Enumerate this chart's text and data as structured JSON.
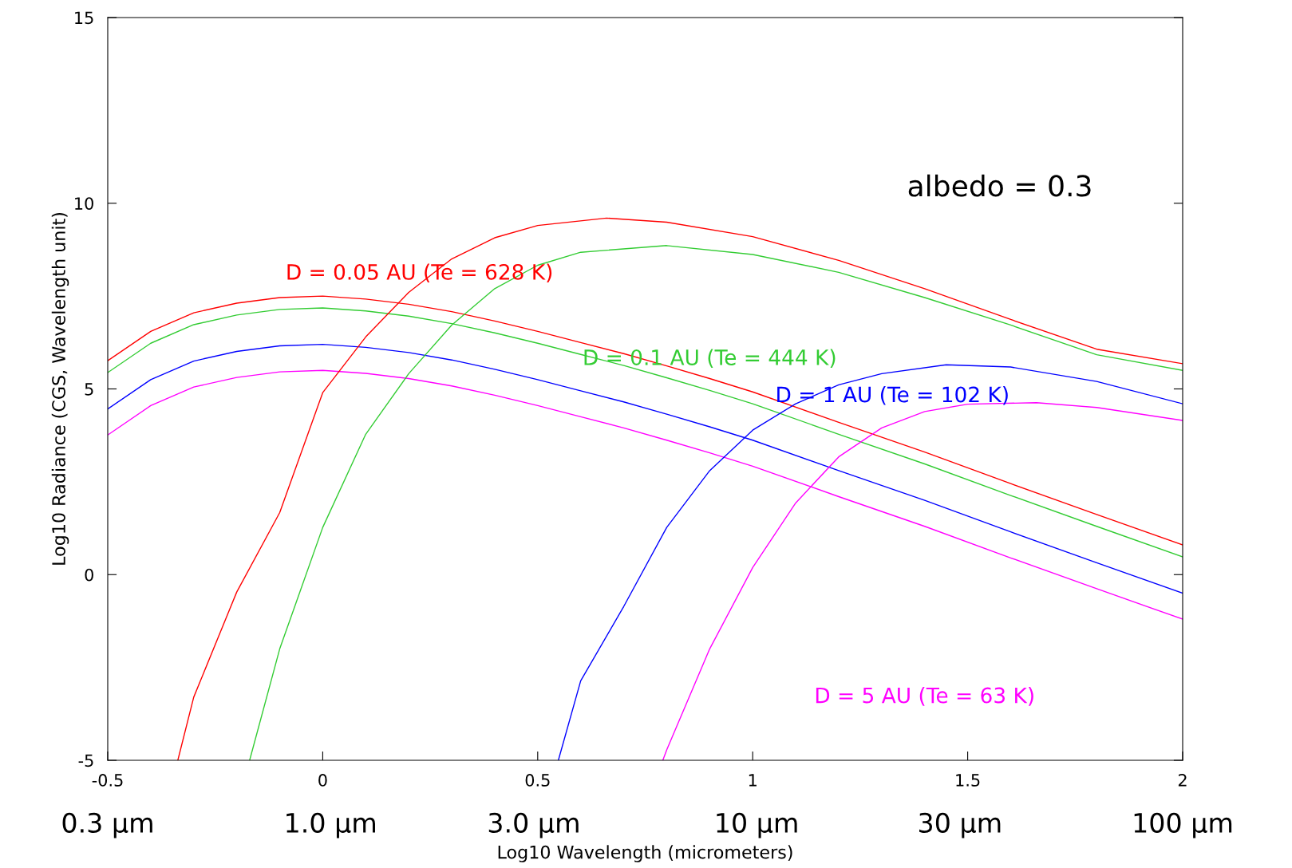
{
  "chart_data": {
    "type": "line",
    "xlabel": "Log10 Wavelength (micrometers)",
    "ylabel": "Log10 Radiance (CGS, Wavelength unit)",
    "xlim": [
      -0.5,
      2
    ],
    "xticks": [
      -0.5,
      0,
      0.5,
      1,
      1.5,
      2
    ],
    "ylim": [
      -5,
      15
    ],
    "yticks": [
      -5,
      0,
      5,
      10,
      15
    ],
    "x2lim": [
      0.3,
      100
    ],
    "log": "x2",
    "x2ticks": [
      {
        "value": 0.3,
        "label": "0.3 μm"
      },
      {
        "value": 1,
        "label": "1.0 μm"
      },
      {
        "value": 3,
        "label": "3.0 μm"
      },
      {
        "value": 10,
        "label": "10 μm"
      },
      {
        "value": 30,
        "label": "30 μm"
      },
      {
        "value": 100,
        "label": "100 μm"
      }
    ],
    "grid": false,
    "legend": false,
    "marker": "none",
    "line_style": "solid",
    "annotations": [
      "albedo = 0.3"
    ],
    "series": [
      {
        "color": "#ff0000",
        "x": [
          -0.5,
          -0.4,
          -0.3,
          -0.2,
          -0.1,
          0,
          0.1,
          0.2,
          0.3,
          0.4,
          0.5,
          0.6,
          0.7,
          0.8,
          0.9,
          1.0,
          1.2,
          1.4,
          1.6,
          1.8,
          2.0
        ],
        "values": [
          5.76,
          6.55,
          7.05,
          7.31,
          7.46,
          7.5,
          7.42,
          7.28,
          7.08,
          6.83,
          6.55,
          6.25,
          5.95,
          5.62,
          5.28,
          4.92,
          4.1,
          3.3,
          2.45,
          1.62,
          0.8
        ]
      },
      {
        "color": "#33cc33",
        "x": [
          -0.5,
          -0.4,
          -0.3,
          -0.2,
          -0.1,
          0,
          0.1,
          0.2,
          0.3,
          0.4,
          0.5,
          0.6,
          0.7,
          0.8,
          0.9,
          1.0,
          1.2,
          1.4,
          1.6,
          1.8,
          2.0
        ],
        "values": [
          5.44,
          6.23,
          6.73,
          6.99,
          7.14,
          7.18,
          7.1,
          6.96,
          6.76,
          6.51,
          6.23,
          5.93,
          5.63,
          5.3,
          4.96,
          4.6,
          3.78,
          2.98,
          2.13,
          1.3,
          0.48
        ]
      },
      {
        "color": "#0000ff",
        "x": [
          -0.5,
          -0.4,
          -0.3,
          -0.2,
          -0.1,
          0,
          0.1,
          0.2,
          0.3,
          0.4,
          0.5,
          0.6,
          0.7,
          0.8,
          0.9,
          1.0,
          1.2,
          1.4,
          1.6,
          1.8,
          2.0
        ],
        "values": [
          4.46,
          5.25,
          5.75,
          6.01,
          6.16,
          6.2,
          6.12,
          5.98,
          5.78,
          5.53,
          5.25,
          4.95,
          4.65,
          4.32,
          3.98,
          3.62,
          2.8,
          2.0,
          1.15,
          0.32,
          -0.5
        ]
      },
      {
        "color": "#ff00ff",
        "x": [
          -0.5,
          -0.4,
          -0.3,
          -0.2,
          -0.1,
          0,
          0.1,
          0.2,
          0.3,
          0.4,
          0.5,
          0.6,
          0.7,
          0.8,
          0.9,
          1.0,
          1.2,
          1.4,
          1.6,
          1.8,
          2.0
        ],
        "values": [
          3.76,
          4.55,
          5.05,
          5.31,
          5.46,
          5.5,
          5.42,
          5.28,
          5.08,
          4.83,
          4.55,
          4.25,
          3.95,
          3.62,
          3.28,
          2.92,
          2.1,
          1.3,
          0.45,
          -0.38,
          -1.2
        ]
      },
      {
        "name": "D = 0.05 AU (Te = 628 K)",
        "color": "#ff0000",
        "x": [
          -0.337,
          -0.3,
          -0.2,
          -0.1,
          0,
          0.1,
          0.2,
          0.3,
          0.4,
          0.5,
          0.66,
          0.8,
          1.0,
          1.2,
          1.4,
          1.6,
          1.8,
          2.0
        ],
        "values": [
          -5,
          -3.3,
          -0.47,
          1.67,
          4.9,
          6.4,
          7.6,
          8.5,
          9.07,
          9.4,
          9.6,
          9.49,
          9.1,
          8.46,
          7.7,
          6.87,
          6.07,
          5.68
        ]
      },
      {
        "name": "D = 0.1 AU (Te = 444 K)",
        "color": "#33cc33",
        "x": [
          -0.17,
          -0.1,
          0,
          0.1,
          0.2,
          0.3,
          0.4,
          0.5,
          0.6,
          0.8,
          1.0,
          1.2,
          1.4,
          1.6,
          1.8,
          2.0
        ],
        "values": [
          -5,
          -2.0,
          1.27,
          3.78,
          5.41,
          6.72,
          7.7,
          8.33,
          8.68,
          8.86,
          8.62,
          8.14,
          7.46,
          6.72,
          5.92,
          5.5
        ]
      },
      {
        "name": "D = 1 AU (Te = 102 K)",
        "color": "#0000ff",
        "x": [
          0.548,
          0.6,
          0.7,
          0.8,
          0.9,
          1.0,
          1.1,
          1.2,
          1.3,
          1.45,
          1.6,
          1.8,
          2.0
        ],
        "values": [
          -5,
          -2.86,
          -0.86,
          1.27,
          2.8,
          3.89,
          4.6,
          5.11,
          5.41,
          5.65,
          5.59,
          5.2,
          4.6
        ]
      },
      {
        "name": "D = 5 AU (Te = 63 K)",
        "color": "#ff00ff",
        "x": [
          0.791,
          0.8,
          0.9,
          1.0,
          1.1,
          1.2,
          1.3,
          1.4,
          1.5,
          1.66,
          1.8,
          2.0
        ],
        "values": [
          -5,
          -4.72,
          -2.0,
          0.19,
          1.93,
          3.17,
          3.95,
          4.39,
          4.59,
          4.63,
          4.5,
          4.15
        ]
      }
    ]
  }
}
